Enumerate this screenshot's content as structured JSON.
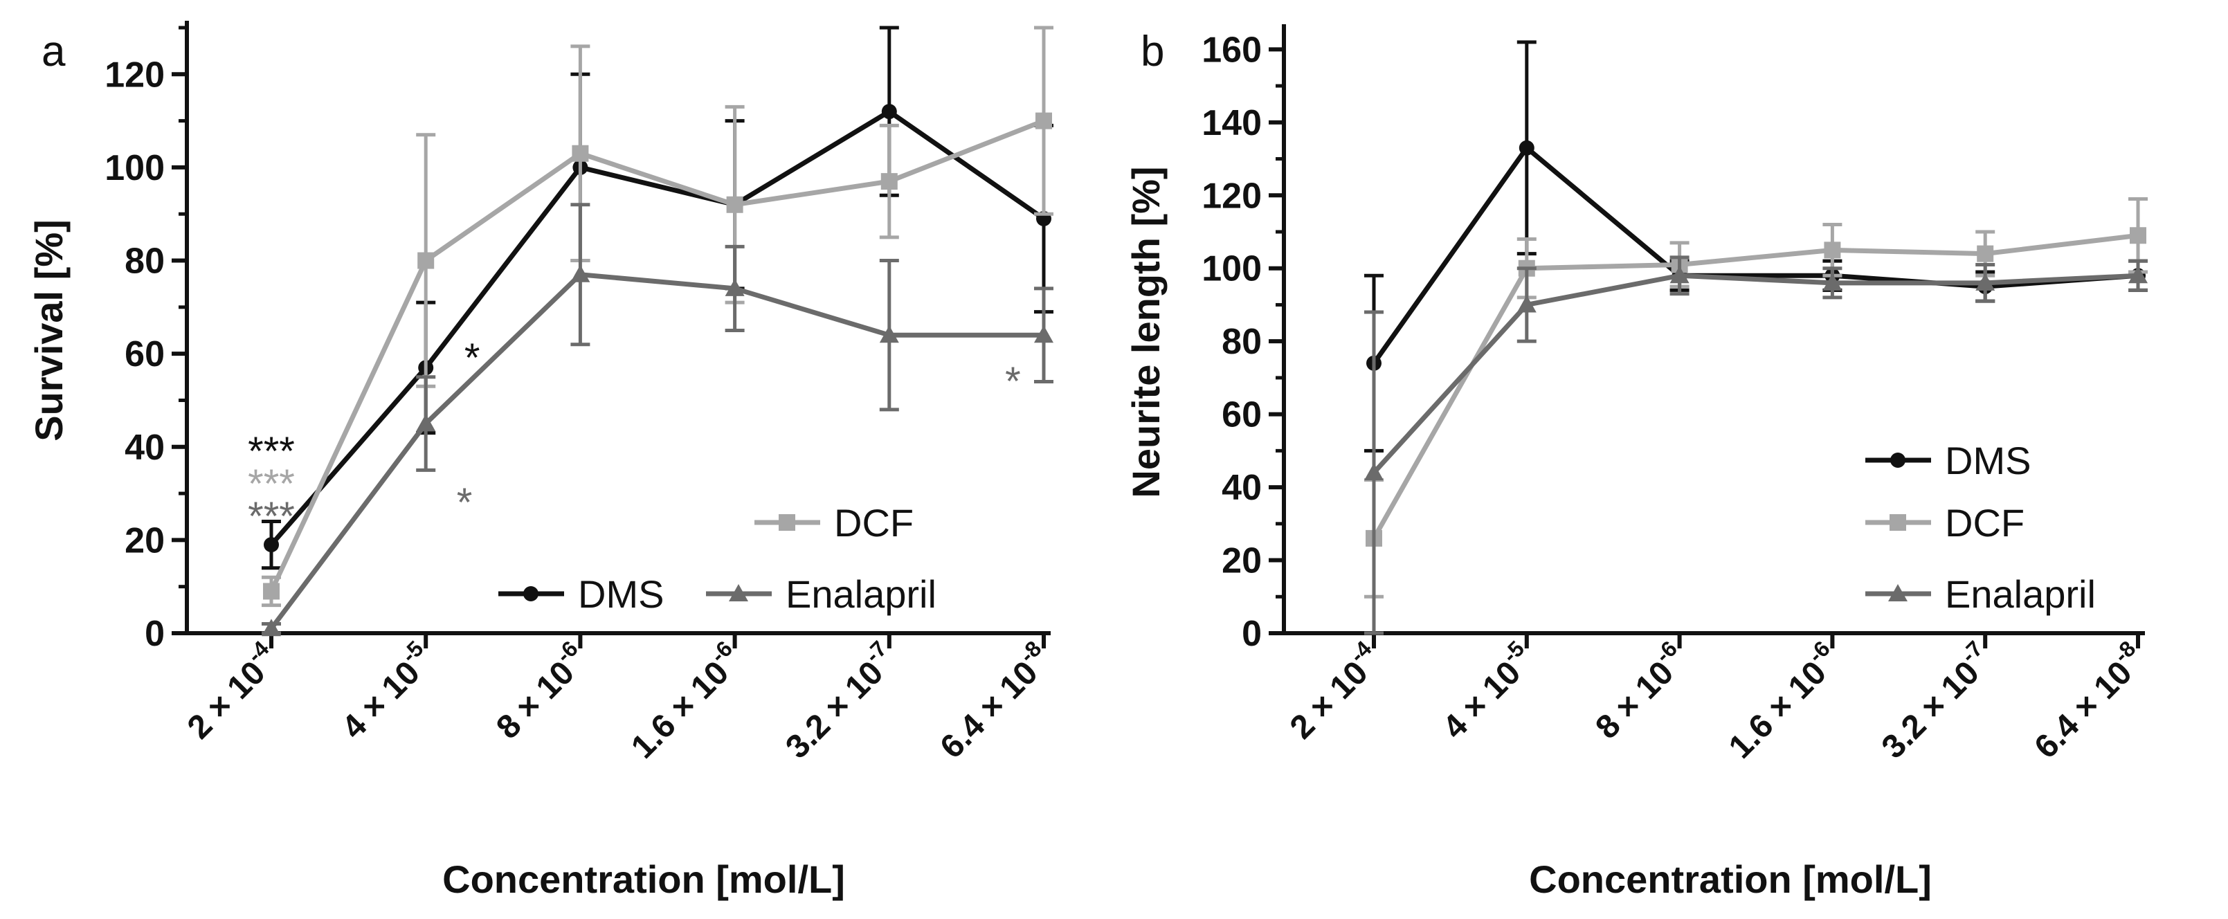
{
  "figure": {
    "panels": [
      "a",
      "b"
    ]
  },
  "chart_data": [
    {
      "panel_label": "a",
      "type": "line",
      "categories": [
        "2 × 10^-4",
        "4 × 10^-5",
        "8 × 10^-6",
        "1.6 × 10^-6",
        "3.2 × 10^-7",
        "6.4 × 10^-8"
      ],
      "xlabel": "Concentration [mol/L]",
      "ylabel": "Survival [%]",
      "ylim": [
        0,
        130
      ],
      "yticks": [
        0,
        20,
        40,
        60,
        80,
        100,
        120
      ],
      "legend_position": "bottom-right",
      "legend_rows": [
        [
          "DCF"
        ],
        [
          "DMS",
          "Enalapril"
        ]
      ],
      "series": [
        {
          "name": "DMS",
          "color": "#111111",
          "marker": "circle",
          "values": [
            19,
            57,
            100,
            92,
            112,
            89
          ],
          "errors": [
            5,
            14,
            20,
            18,
            18,
            20
          ]
        },
        {
          "name": "DCF",
          "color": "#a6a6a6",
          "marker": "square",
          "values": [
            9,
            80,
            103,
            92,
            97,
            110
          ],
          "errors": [
            3,
            27,
            23,
            21,
            12,
            20
          ]
        },
        {
          "name": "Enalapril",
          "color": "#6b6b6b",
          "marker": "triangle",
          "values": [
            1,
            45,
            77,
            74,
            64,
            64
          ],
          "errors": [
            1,
            10,
            15,
            9,
            16,
            10
          ]
        }
      ],
      "annotations": [
        {
          "text": "***",
          "category": 0,
          "y": 40,
          "color": "#111111"
        },
        {
          "text": "***",
          "category": 0,
          "y": 33,
          "color": "#a6a6a6"
        },
        {
          "text": "***",
          "category": 0,
          "y": 26,
          "color": "#6b6b6b"
        },
        {
          "text": "*",
          "category": 1.3,
          "y": 60,
          "color": "#111111"
        },
        {
          "text": "*",
          "category": 1.25,
          "y": 29,
          "color": "#6b6b6b"
        },
        {
          "text": "*",
          "category": 4.8,
          "y": 55,
          "color": "#6b6b6b"
        }
      ]
    },
    {
      "panel_label": "b",
      "type": "line",
      "categories": [
        "2 × 10^-4",
        "4 × 10^-5",
        "8 × 10^-6",
        "1.6 × 10^-6",
        "3.2 × 10^-7",
        "6.4 × 10^-8"
      ],
      "xlabel": "Concentration [mol/L]",
      "ylabel": "Neurite length [%]",
      "ylim": [
        0,
        165
      ],
      "yticks": [
        0,
        20,
        40,
        60,
        80,
        100,
        120,
        140,
        160
      ],
      "legend_position": "bottom-right",
      "legend_rows": [
        [
          "DMS"
        ],
        [
          "DCF"
        ],
        [
          "Enalapril"
        ]
      ],
      "series": [
        {
          "name": "DMS",
          "color": "#111111",
          "marker": "circle",
          "values": [
            74,
            133,
            98,
            98,
            95,
            98
          ],
          "errors": [
            24,
            29,
            4,
            4,
            4,
            4
          ]
        },
        {
          "name": "DCF",
          "color": "#a6a6a6",
          "marker": "square",
          "values": [
            26,
            100,
            101,
            105,
            104,
            109
          ],
          "errors": [
            16,
            8,
            6,
            7,
            6,
            10
          ]
        },
        {
          "name": "Enalapril",
          "color": "#6b6b6b",
          "marker": "triangle",
          "values": [
            44,
            90,
            98,
            96,
            96,
            98
          ],
          "errors": [
            44,
            10,
            5,
            4,
            5,
            4
          ]
        }
      ],
      "annotations": []
    }
  ]
}
